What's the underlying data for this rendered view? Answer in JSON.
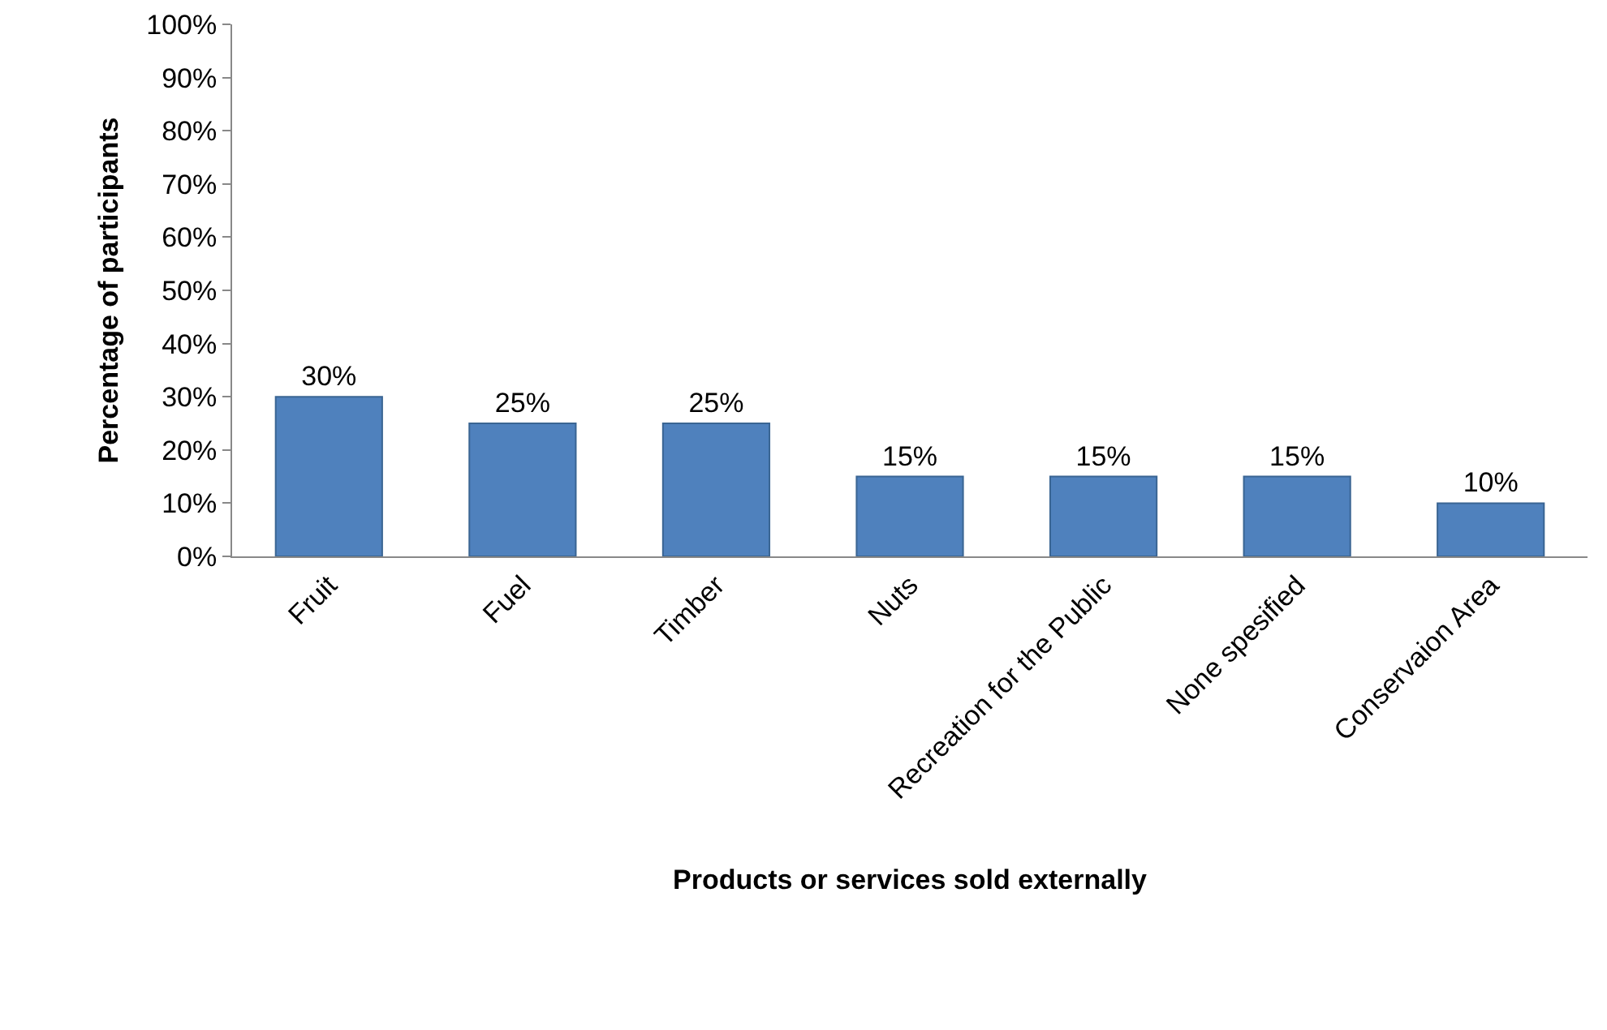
{
  "chart_data": {
    "type": "bar",
    "xlabel": "Products or services sold externally",
    "ylabel": "Percentage of participants",
    "categories": [
      "Fruit",
      "Fuel",
      "Timber",
      "Nuts",
      "Recreation for the Public",
      "None spesified",
      "Conservaion Area"
    ],
    "values": [
      30,
      25,
      25,
      15,
      15,
      15,
      10
    ],
    "value_labels": [
      "30%",
      "25%",
      "25%",
      "15%",
      "15%",
      "15%",
      "10%"
    ],
    "color": "#4f81bd",
    "ylim": [
      0,
      100
    ],
    "yticks": [
      {
        "value": 0,
        "label": "0%"
      },
      {
        "value": 10,
        "label": "10%"
      },
      {
        "value": 20,
        "label": "20%"
      },
      {
        "value": 30,
        "label": "30%"
      },
      {
        "value": 40,
        "label": "40%"
      },
      {
        "value": 50,
        "label": "50%"
      },
      {
        "value": 60,
        "label": "60%"
      },
      {
        "value": 70,
        "label": "70%"
      },
      {
        "value": 80,
        "label": "80%"
      },
      {
        "value": 90,
        "label": "90%"
      },
      {
        "value": 100,
        "label": "100%"
      }
    ],
    "marker": "none"
  }
}
